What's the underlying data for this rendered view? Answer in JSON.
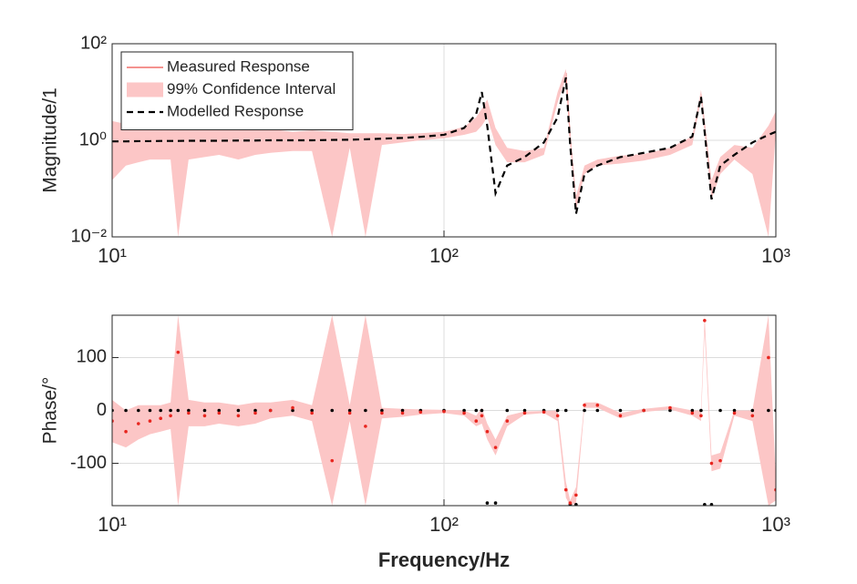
{
  "chart_data": [
    {
      "type": "line",
      "xscale": "log",
      "yscale": "log",
      "grid": true,
      "legend": "upper left",
      "ylabel": "Magnitude/1",
      "xlim": [
        10,
        1000
      ],
      "xticks": [
        {
          "value": 10,
          "label": "10¹"
        },
        {
          "value": 100,
          "label": "10²"
        },
        {
          "value": 1000,
          "label": "10³"
        }
      ],
      "ylim": [
        0.01,
        100
      ],
      "yticks": [
        {
          "value": 0.01,
          "label": "10⁻²"
        },
        {
          "value": 1,
          "label": "10⁰"
        },
        {
          "value": 100,
          "label": "10²"
        }
      ],
      "x": [
        10,
        11,
        12,
        13,
        14,
        15,
        15.8,
        17,
        19,
        21,
        24,
        27,
        30,
        35,
        40,
        46,
        52,
        58,
        65,
        75,
        85,
        100,
        115,
        125,
        130,
        135,
        143,
        155,
        175,
        200,
        220,
        233,
        240,
        250,
        265,
        290,
        340,
        400,
        480,
        560,
        595,
        610,
        640,
        680,
        750,
        850,
        950,
        1000
      ],
      "series": [
        {
          "name": "Measured Response",
          "color": "#e8261f",
          "style": "solid",
          "values": [
            0.7,
            1.0,
            0.8,
            1.1,
            0.9,
            0.85,
            0.7,
            1.0,
            0.9,
            1.05,
            0.95,
            0.9,
            1.0,
            0.95,
            1.05,
            0.6,
            1.05,
            0.75,
            1.1,
            1.1,
            1.2,
            1.3,
            1.6,
            2.2,
            3,
            5,
            1.2,
            0.5,
            0.45,
            0.6,
            8,
            25,
            1.2,
            0.05,
            0.25,
            0.35,
            0.4,
            0.45,
            0.6,
            1.0,
            9,
            2,
            0.1,
            0.3,
            0.6,
            0.4,
            0.7,
            3
          ]
        },
        {
          "name": "99% Confidence Interval",
          "color": "#fcc6c6",
          "style": "band",
          "lower": [
            0.15,
            0.3,
            0.35,
            0.4,
            0.4,
            0.4,
            0.01,
            0.4,
            0.45,
            0.5,
            0.4,
            0.5,
            0.55,
            0.6,
            0.6,
            0.01,
            0.7,
            0.01,
            0.8,
            0.9,
            1.0,
            1.1,
            1.3,
            1.5,
            2,
            3,
            0.8,
            0.35,
            0.35,
            0.5,
            6,
            20,
            0.9,
            0.035,
            0.2,
            0.3,
            0.33,
            0.38,
            0.5,
            0.8,
            7,
            1.4,
            0.06,
            0.2,
            0.4,
            0.2,
            0.01,
            1.5
          ],
          "upper": [
            2.5,
            2.2,
            2,
            2.2,
            2,
            2,
            2.5,
            2,
            1.9,
            1.9,
            1.8,
            1.7,
            1.7,
            1.5,
            1.6,
            1.5,
            1.4,
            1.4,
            1.4,
            1.35,
            1.4,
            1.5,
            1.9,
            3,
            4.5,
            7,
            1.8,
            0.7,
            0.6,
            0.7,
            10,
            30,
            1.6,
            0.07,
            0.3,
            0.4,
            0.48,
            0.52,
            0.7,
            1.2,
            11,
            2.8,
            0.15,
            0.45,
            0.8,
            0.7,
            2,
            4
          ]
        },
        {
          "name": "Modelled Response",
          "color": "#000000",
          "style": "dashed",
          "values": [
            0.95,
            0.95,
            0.96,
            0.96,
            0.97,
            0.97,
            0.97,
            0.98,
            0.98,
            0.98,
            0.99,
            0.99,
            1.0,
            1.0,
            1.0,
            1.02,
            1.03,
            1.05,
            1.08,
            1.12,
            1.18,
            1.3,
            1.8,
            3.5,
            10,
            2,
            0.08,
            0.3,
            0.45,
            0.9,
            3,
            20,
            0.8,
            0.03,
            0.2,
            0.3,
            0.45,
            0.55,
            0.7,
            1.2,
            8,
            1.5,
            0.06,
            0.3,
            0.5,
            0.9,
            1.3,
            1.5
          ]
        }
      ]
    },
    {
      "type": "line",
      "xscale": "log",
      "yscale": "linear",
      "grid": true,
      "ylabel": "Phase/°",
      "xlabel": "Frequency/Hz",
      "xlim": [
        10,
        1000
      ],
      "xticks": [
        {
          "value": 10,
          "label": "10¹"
        },
        {
          "value": 100,
          "label": "10²"
        },
        {
          "value": 1000,
          "label": "10³"
        }
      ],
      "ylim": [
        -180,
        180
      ],
      "yticks": [
        -100,
        0,
        100
      ],
      "x": [
        10,
        11,
        12,
        13,
        14,
        15,
        15.8,
        17,
        19,
        21,
        24,
        27,
        30,
        35,
        40,
        46,
        52,
        58,
        65,
        75,
        85,
        100,
        115,
        125,
        130,
        135,
        143,
        155,
        175,
        200,
        220,
        233,
        240,
        250,
        265,
        290,
        340,
        400,
        480,
        560,
        595,
        610,
        640,
        680,
        750,
        850,
        950,
        1000
      ],
      "series": [
        {
          "color": "#fcc6c6",
          "style": "band",
          "lower": [
            -60,
            -70,
            -55,
            -45,
            -40,
            -35,
            -180,
            -30,
            -30,
            -25,
            -30,
            -25,
            -15,
            -10,
            -20,
            -180,
            -20,
            -180,
            -15,
            -12,
            -8,
            -5,
            -10,
            -30,
            -25,
            -55,
            -85,
            -30,
            -8,
            -5,
            -20,
            -165,
            -180,
            -175,
            5,
            5,
            -15,
            -3,
            2,
            -10,
            -20,
            150,
            -115,
            -110,
            -10,
            -20,
            -180,
            -170
          ],
          "upper": [
            20,
            0,
            10,
            10,
            10,
            15,
            180,
            20,
            15,
            15,
            10,
            15,
            15,
            20,
            10,
            180,
            10,
            180,
            5,
            3,
            2,
            1,
            0,
            -10,
            5,
            -25,
            -55,
            -10,
            -2,
            -1,
            0,
            -135,
            -170,
            -145,
            15,
            15,
            -5,
            3,
            8,
            0,
            0,
            180,
            -85,
            -80,
            0,
            0,
            180,
            -130
          ]
        },
        {
          "color": "#000000",
          "style": "dots",
          "values": [
            0,
            0,
            0,
            0,
            0,
            0,
            0,
            0,
            0,
            0,
            0,
            0,
            0,
            0,
            0,
            0,
            0,
            0,
            0,
            0,
            0,
            0,
            0,
            0,
            0,
            -175,
            -175,
            0,
            0,
            0,
            0,
            0,
            -178,
            -178,
            0,
            0,
            0,
            0,
            0,
            0,
            0,
            -178,
            -178,
            0,
            0,
            0,
            0,
            0
          ]
        },
        {
          "color": "#e8261f",
          "style": "dots",
          "values": [
            -20,
            -40,
            -25,
            -20,
            -15,
            -10,
            110,
            -5,
            -10,
            -5,
            -10,
            -5,
            0,
            5,
            -5,
            -95,
            -5,
            -30,
            -5,
            -5,
            -3,
            -2,
            -5,
            -20,
            -10,
            -40,
            -70,
            -20,
            -5,
            -3,
            -10,
            -150,
            -175,
            -160,
            10,
            10,
            -10,
            0,
            5,
            -5,
            -10,
            170,
            -100,
            -95,
            -5,
            -10,
            100,
            -150
          ]
        }
      ]
    }
  ]
}
